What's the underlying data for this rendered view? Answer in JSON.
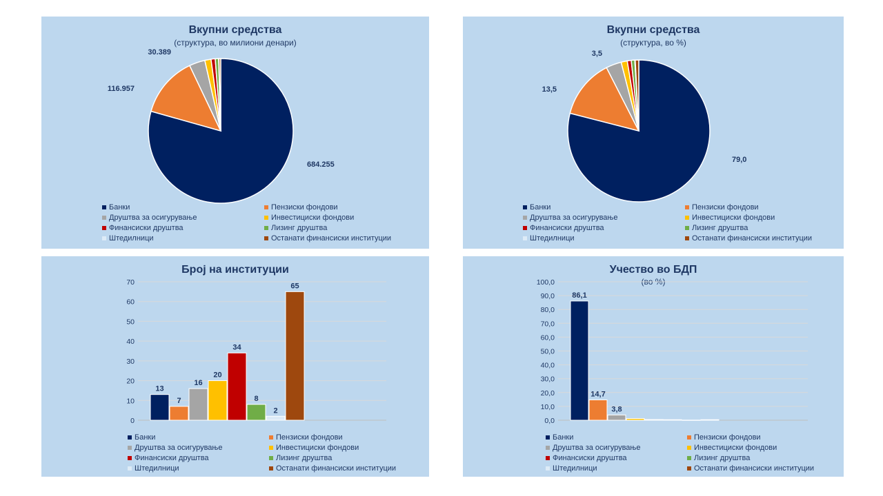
{
  "legend": [
    {
      "label": "Банки",
      "color": "#002060"
    },
    {
      "label": "Пензиски фондови",
      "color": "#ed7d31"
    },
    {
      "label": "Друштва за осигурување",
      "color": "#a5a5a5"
    },
    {
      "label": "Инвестициски фондови",
      "color": "#ffc000"
    },
    {
      "label": "Финансиски друштва",
      "color": "#c00000"
    },
    {
      "label": "Лизинг друштва",
      "color": "#70ad47"
    },
    {
      "label": "Штедилници",
      "color": "#ddebf7"
    },
    {
      "label": "Останати финансиски институции",
      "color": "#9e480e"
    }
  ],
  "chart_data": [
    {
      "type": "pie",
      "title": "Вкупни средства",
      "subtitle": "(структура, во милиони денари)",
      "categories": [
        "Банки",
        "Пензиски фондови",
        "Друштва за осигурување",
        "Инвестициски фондови",
        "Финансиски друштва",
        "Лизинг друштва",
        "Штедилници",
        "Останати финансиски институции"
      ],
      "values": [
        684255,
        116957,
        30389,
        12000,
        8000,
        6500,
        700,
        3300
      ],
      "data_labels": [
        "684.255",
        "116.957",
        "30.389",
        "",
        "",
        "",
        "",
        ""
      ],
      "legend_position": "bottom"
    },
    {
      "type": "pie",
      "title": "Вкупни средства",
      "subtitle": "(структура, во %)",
      "categories": [
        "Банки",
        "Пензиски фондови",
        "Друштва за осигурување",
        "Инвестициски фондови",
        "Финансиски друштва",
        "Лизинг друштва",
        "Штедилници",
        "Останати финансиски институции"
      ],
      "values": [
        79.0,
        13.5,
        3.5,
        1.4,
        0.9,
        0.8,
        0.1,
        0.8
      ],
      "data_labels": [
        "79,0",
        "13,5",
        "3,5",
        "",
        "",
        "",
        "",
        ""
      ],
      "legend_position": "bottom"
    },
    {
      "type": "bar",
      "title": "Број на институции",
      "subtitle": "",
      "categories": [
        "Банки",
        "Пензиски фондови",
        "Друштва за осигурување",
        "Инвестициски фондови",
        "Финансиски друштва",
        "Лизинг друштва",
        "Штедилници",
        "Останати финансиски институции"
      ],
      "values": [
        13,
        7,
        16,
        20,
        34,
        8,
        2,
        65
      ],
      "data_labels": [
        "13",
        "7",
        "16",
        "20",
        "34",
        "8",
        "2",
        "65"
      ],
      "ylim": [
        0,
        70
      ],
      "yticks": [
        "0",
        "10",
        "20",
        "30",
        "40",
        "50",
        "60",
        "70"
      ],
      "grid": true,
      "legend_position": "bottom"
    },
    {
      "type": "bar",
      "title": "Учество во БДП",
      "subtitle": "(во %)",
      "categories": [
        "Банки",
        "Пензиски фондови",
        "Друштва за осигурување",
        "Инвестициски фондови",
        "Финансиски друштва",
        "Лизинг друштва",
        "Штедилници",
        "Останати финансиски институции"
      ],
      "values": [
        86.1,
        14.7,
        3.8,
        1.2,
        0.5,
        0.4,
        0.1,
        0.4
      ],
      "data_labels": [
        "86,1",
        "14,7",
        "3,8",
        "",
        "",
        "",
        "",
        ""
      ],
      "ylim": [
        0,
        100
      ],
      "yticks": [
        "0,0",
        "10,0",
        "20,0",
        "30,0",
        "40,0",
        "50,0",
        "60,0",
        "70,0",
        "80,0",
        "90,0",
        "100,0"
      ],
      "grid": true,
      "legend_position": "bottom"
    }
  ]
}
